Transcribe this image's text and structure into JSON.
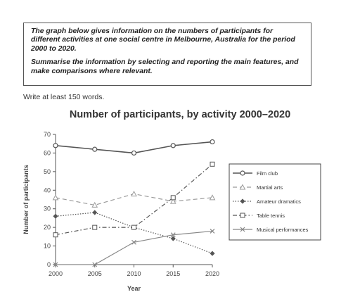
{
  "prompt": {
    "line1": "The graph below gives information on the numbers of participants for different activities at one social centre in Melbourne, Australia for the period 2000 to 2020.",
    "line2": "Summarise the information by selecting and reporting the main features, and make comparisons where relevant."
  },
  "write_note": "Write at least 150 words.",
  "colors": {
    "axis": "#555555",
    "series": "#555555",
    "musical": "#888888",
    "martial": "#9a9a9a"
  },
  "chart_data": {
    "type": "line",
    "title": "Number of participants, by activity 2000–2020",
    "xlabel": "Year",
    "ylabel": "Number of participants",
    "x": [
      2000,
      2005,
      2010,
      2015,
      2020
    ],
    "ylim": [
      0,
      70
    ],
    "yticks": [
      0,
      10,
      20,
      30,
      40,
      50,
      60,
      70
    ],
    "grid": false,
    "legend_position": "right",
    "series": [
      {
        "name": "Film club",
        "values": [
          64,
          62,
          60,
          64,
          66
        ]
      },
      {
        "name": "Martial arts",
        "values": [
          36,
          32,
          38,
          34,
          36
        ]
      },
      {
        "name": "Amateur dramatics",
        "values": [
          26,
          28,
          20,
          14,
          6
        ]
      },
      {
        "name": "Table tennis",
        "values": [
          16,
          20,
          20,
          36,
          54
        ]
      },
      {
        "name": "Musical performances",
        "values": [
          0,
          0,
          12,
          16,
          18
        ]
      }
    ]
  }
}
